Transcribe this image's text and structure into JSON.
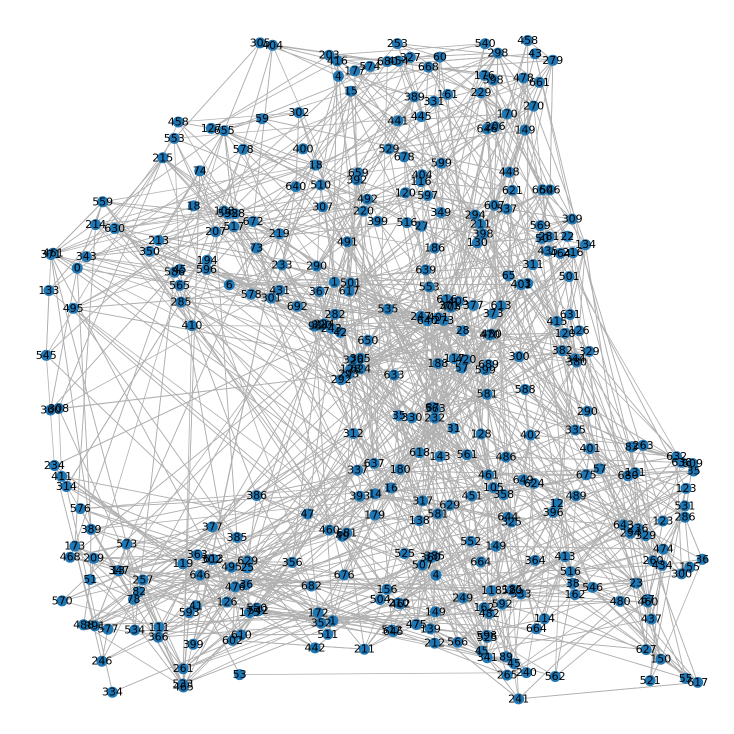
{
  "colors": {
    "node": "#1f77b4",
    "edge": "#b0b0b0",
    "label": "#000000"
  },
  "graph": {
    "nodes": [
      "130",
      "105",
      "111",
      "520",
      "311",
      "597",
      "119",
      "480",
      "3",
      "6",
      "437",
      "320",
      "350",
      "660",
      "1",
      "134",
      "210",
      "170",
      "331",
      "613",
      "537",
      "692",
      "203",
      "127",
      "540",
      "517",
      "510",
      "344",
      "462",
      "629",
      "308",
      "292",
      "398",
      "263",
      "234",
      "377",
      "489",
      "495",
      "482",
      "317",
      "246",
      "559",
      "676",
      "175",
      "646",
      "93",
      "371",
      "185",
      "149",
      "451",
      "689",
      "206",
      "116",
      "480b",
      "386",
      "431",
      "194",
      "531",
      "156",
      "216",
      "305",
      "534",
      "404",
      "616",
      "396",
      "65",
      "577",
      "18",
      "377b",
      "36",
      "588",
      "358",
      "655",
      "279",
      "501",
      "486",
      "639",
      "243",
      "186",
      "150",
      "405",
      "495b",
      "367",
      "366",
      "53",
      "241",
      "382",
      "598",
      "629b",
      "143",
      "389",
      "329",
      "411",
      "476",
      "240",
      "512",
      "458",
      "399",
      "309",
      "542",
      "12",
      "448",
      "546",
      "546b",
      "596",
      "624",
      "343",
      "566",
      "302",
      "637",
      "445",
      "126",
      "561",
      "87",
      "415",
      "516",
      "74",
      "341",
      "123",
      "393",
      "633",
      "644",
      "528",
      "305b",
      "334",
      "335",
      "155",
      "533",
      "35",
      "646b",
      "501b",
      "599",
      "314",
      "4",
      "413",
      "640",
      "478",
      "570",
      "172",
      "294",
      "232",
      "229",
      "593",
      "630",
      "211",
      "576",
      "373",
      "675",
      "363",
      "578",
      "224",
      "260",
      "650",
      "337",
      "454",
      "475",
      "114",
      "380",
      "682",
      "290",
      "521",
      "581",
      "78",
      "82",
      "50",
      "410",
      "285",
      "300",
      "624b",
      "89",
      "435",
      "270",
      "349",
      "416",
      "38",
      "681",
      "668",
      "133",
      "302b",
      "507",
      "253",
      "60",
      "233",
      "139",
      "352",
      "209",
      "42",
      "25",
      "599b",
      "57",
      "327",
      "73",
      "162",
      "249",
      "257",
      "247",
      "83",
      "593b",
      "602",
      "162b",
      "43",
      "281",
      "586",
      "621",
      "401",
      "282",
      "108",
      "123b",
      "59",
      "118",
      "179",
      "23",
      "326",
      "617",
      "664",
      "680",
      "219",
      "638",
      "325",
      "45",
      "265",
      "405b",
      "511",
      "236",
      "529",
      "609",
      "128",
      "627",
      "613b",
      "661",
      "273",
      "1b",
      "592",
      "474",
      "464",
      "301",
      "294b",
      "525",
      "22",
      "401b",
      "211b",
      "402",
      "420",
      "286",
      "631",
      "67",
      "643",
      "645",
      "149b",
      "545",
      "574",
      "120",
      "347",
      "126b",
      "400",
      "47",
      "220",
      "14",
      "678",
      "188",
      "672",
      "35b",
      "214",
      "488",
      "461",
      "598b",
      "360",
      "312",
      "504",
      "149c",
      "0",
      "138",
      "461b",
      "664b",
      "680b",
      "441",
      "392",
      "458b",
      "460",
      "607",
      "389b",
      "213",
      "13",
      "610",
      "659",
      "516",
      "177",
      "525b",
      "385",
      "491",
      "434",
      "553",
      "562",
      "57b",
      "49",
      "298",
      "4b",
      "640b",
      "578b",
      "468",
      "573",
      "45b",
      "301b",
      "215",
      "290b",
      "569",
      "128b",
      "391",
      "41",
      "131",
      "307",
      "36b",
      "55",
      "212",
      "364",
      "399b",
      "161",
      "27",
      "618",
      "45c",
      "617b",
      "31",
      "300b",
      "18b",
      "173",
      "533b",
      "632",
      "51",
      "180",
      "553b",
      "293",
      "465",
      "16",
      "117",
      "649",
      "470",
      "442",
      "28",
      "176",
      "565",
      "329b",
      "360b",
      "460b",
      "492",
      "550",
      "581b",
      "535",
      "552",
      "563",
      "15",
      "261",
      "404b",
      "356",
      "330",
      "401c",
      "120b",
      "385b",
      "207"
    ],
    "edges_count": 2400
  }
}
